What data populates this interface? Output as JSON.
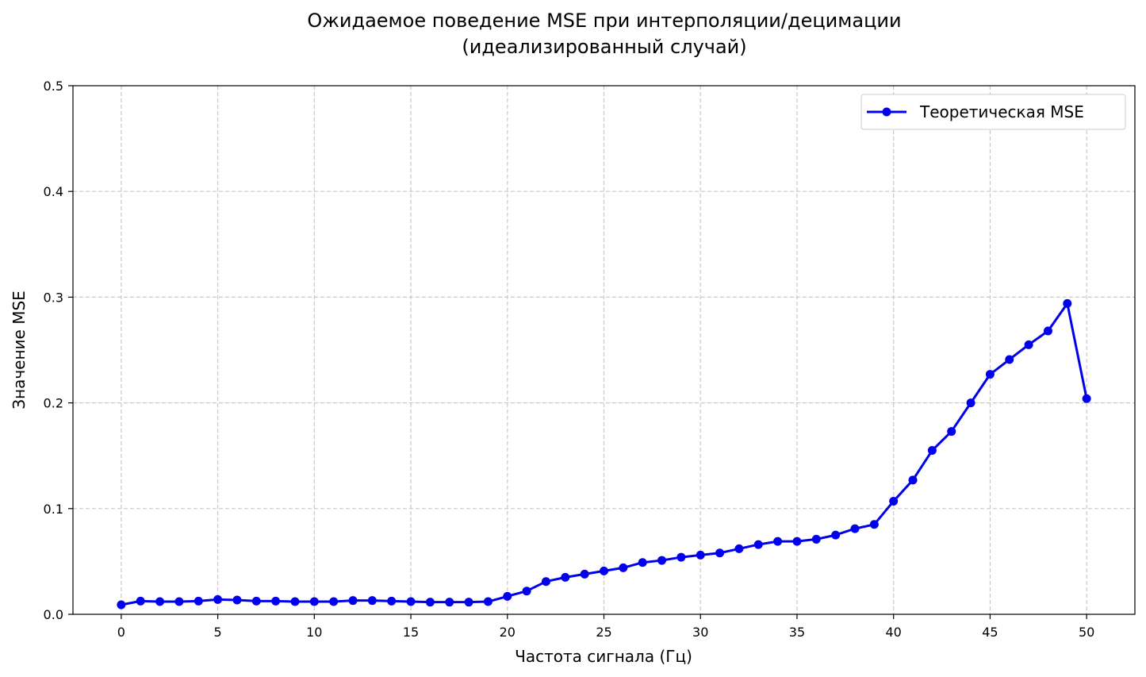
{
  "chart_data": {
    "type": "line",
    "title": [
      "Ожидаемое поведение MSE при интерполяции/децимации",
      "(идеализированный случай)"
    ],
    "xlabel": "Частота сигнала (Гц)",
    "ylabel": "Значение MSE",
    "xlim": [
      -2.5,
      52.5
    ],
    "ylim": [
      0,
      0.5
    ],
    "xticks": [
      0,
      5,
      10,
      15,
      20,
      25,
      30,
      35,
      40,
      45,
      50
    ],
    "yticks": [
      0.0,
      0.1,
      0.2,
      0.3,
      0.4,
      0.5
    ],
    "ytick_labels": [
      "0.0",
      "0.1",
      "0.2",
      "0.3",
      "0.4",
      "0.5"
    ],
    "grid": true,
    "legend_position": "top-right",
    "series": [
      {
        "name": "Теоретическая MSE",
        "color": "#0000ee",
        "marker": "circle",
        "x": [
          0,
          1,
          2,
          3,
          4,
          5,
          6,
          7,
          8,
          9,
          10,
          11,
          12,
          13,
          14,
          15,
          16,
          17,
          18,
          19,
          20,
          21,
          22,
          23,
          24,
          25,
          26,
          27,
          28,
          29,
          30,
          31,
          32,
          33,
          34,
          35,
          36,
          37,
          38,
          39,
          40,
          41,
          42,
          43,
          44,
          45,
          46,
          47,
          48,
          49,
          50
        ],
        "y": [
          0.009,
          0.0125,
          0.012,
          0.012,
          0.0125,
          0.014,
          0.0135,
          0.0125,
          0.0125,
          0.012,
          0.012,
          0.012,
          0.013,
          0.013,
          0.0125,
          0.012,
          0.0115,
          0.0115,
          0.0115,
          0.012,
          0.017,
          0.022,
          0.031,
          0.035,
          0.038,
          0.041,
          0.044,
          0.049,
          0.051,
          0.054,
          0.056,
          0.058,
          0.062,
          0.066,
          0.069,
          0.069,
          0.071,
          0.075,
          0.081,
          0.085,
          0.107,
          0.127,
          0.155,
          0.173,
          0.2,
          0.227,
          0.241,
          0.255,
          0.268,
          0.294,
          0.204
        ]
      }
    ]
  }
}
